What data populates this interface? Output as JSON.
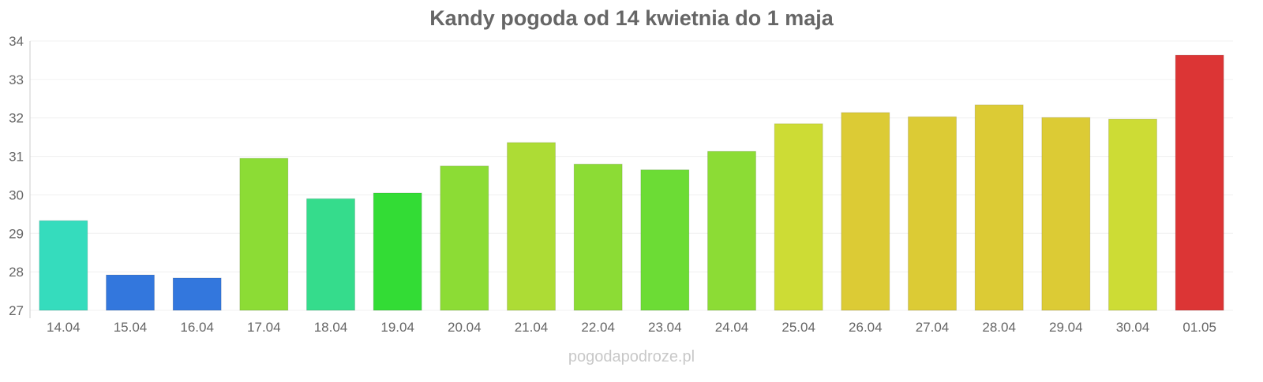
{
  "chart_data": {
    "type": "bar",
    "title": "Kandy pogoda od 14 kwietnia do 1 maja",
    "xlabel": "",
    "ylabel": "",
    "ylim": [
      27,
      34
    ],
    "yticks": [
      "27",
      "28",
      "29",
      "30",
      "31",
      "32",
      "33",
      "34"
    ],
    "grid": true,
    "categories": [
      "14.04",
      "15.04",
      "16.04",
      "17.04",
      "18.04",
      "19.04",
      "20.04",
      "21.04",
      "22.04",
      "23.04",
      "24.04",
      "25.04",
      "26.04",
      "27.04",
      "28.04",
      "29.04",
      "30.04",
      "01.05"
    ],
    "values": [
      29.33,
      27.92,
      27.84,
      30.95,
      29.9,
      30.05,
      30.75,
      31.36,
      30.8,
      30.65,
      31.13,
      31.85,
      32.14,
      32.03,
      32.34,
      32.01,
      31.97,
      33.63
    ],
    "colors": [
      "#35dcbd",
      "#3377dd",
      "#3377dd",
      "#8cdc35",
      "#35dc8c",
      "#33dc35",
      "#8cdc35",
      "#addc35",
      "#8cdc35",
      "#6cdc35",
      "#8cdc35",
      "#cddc35",
      "#dccb35",
      "#dccb35",
      "#dccb35",
      "#dccb35",
      "#cddc35",
      "#dc3535"
    ]
  },
  "watermark": "pogodapodroze.pl"
}
